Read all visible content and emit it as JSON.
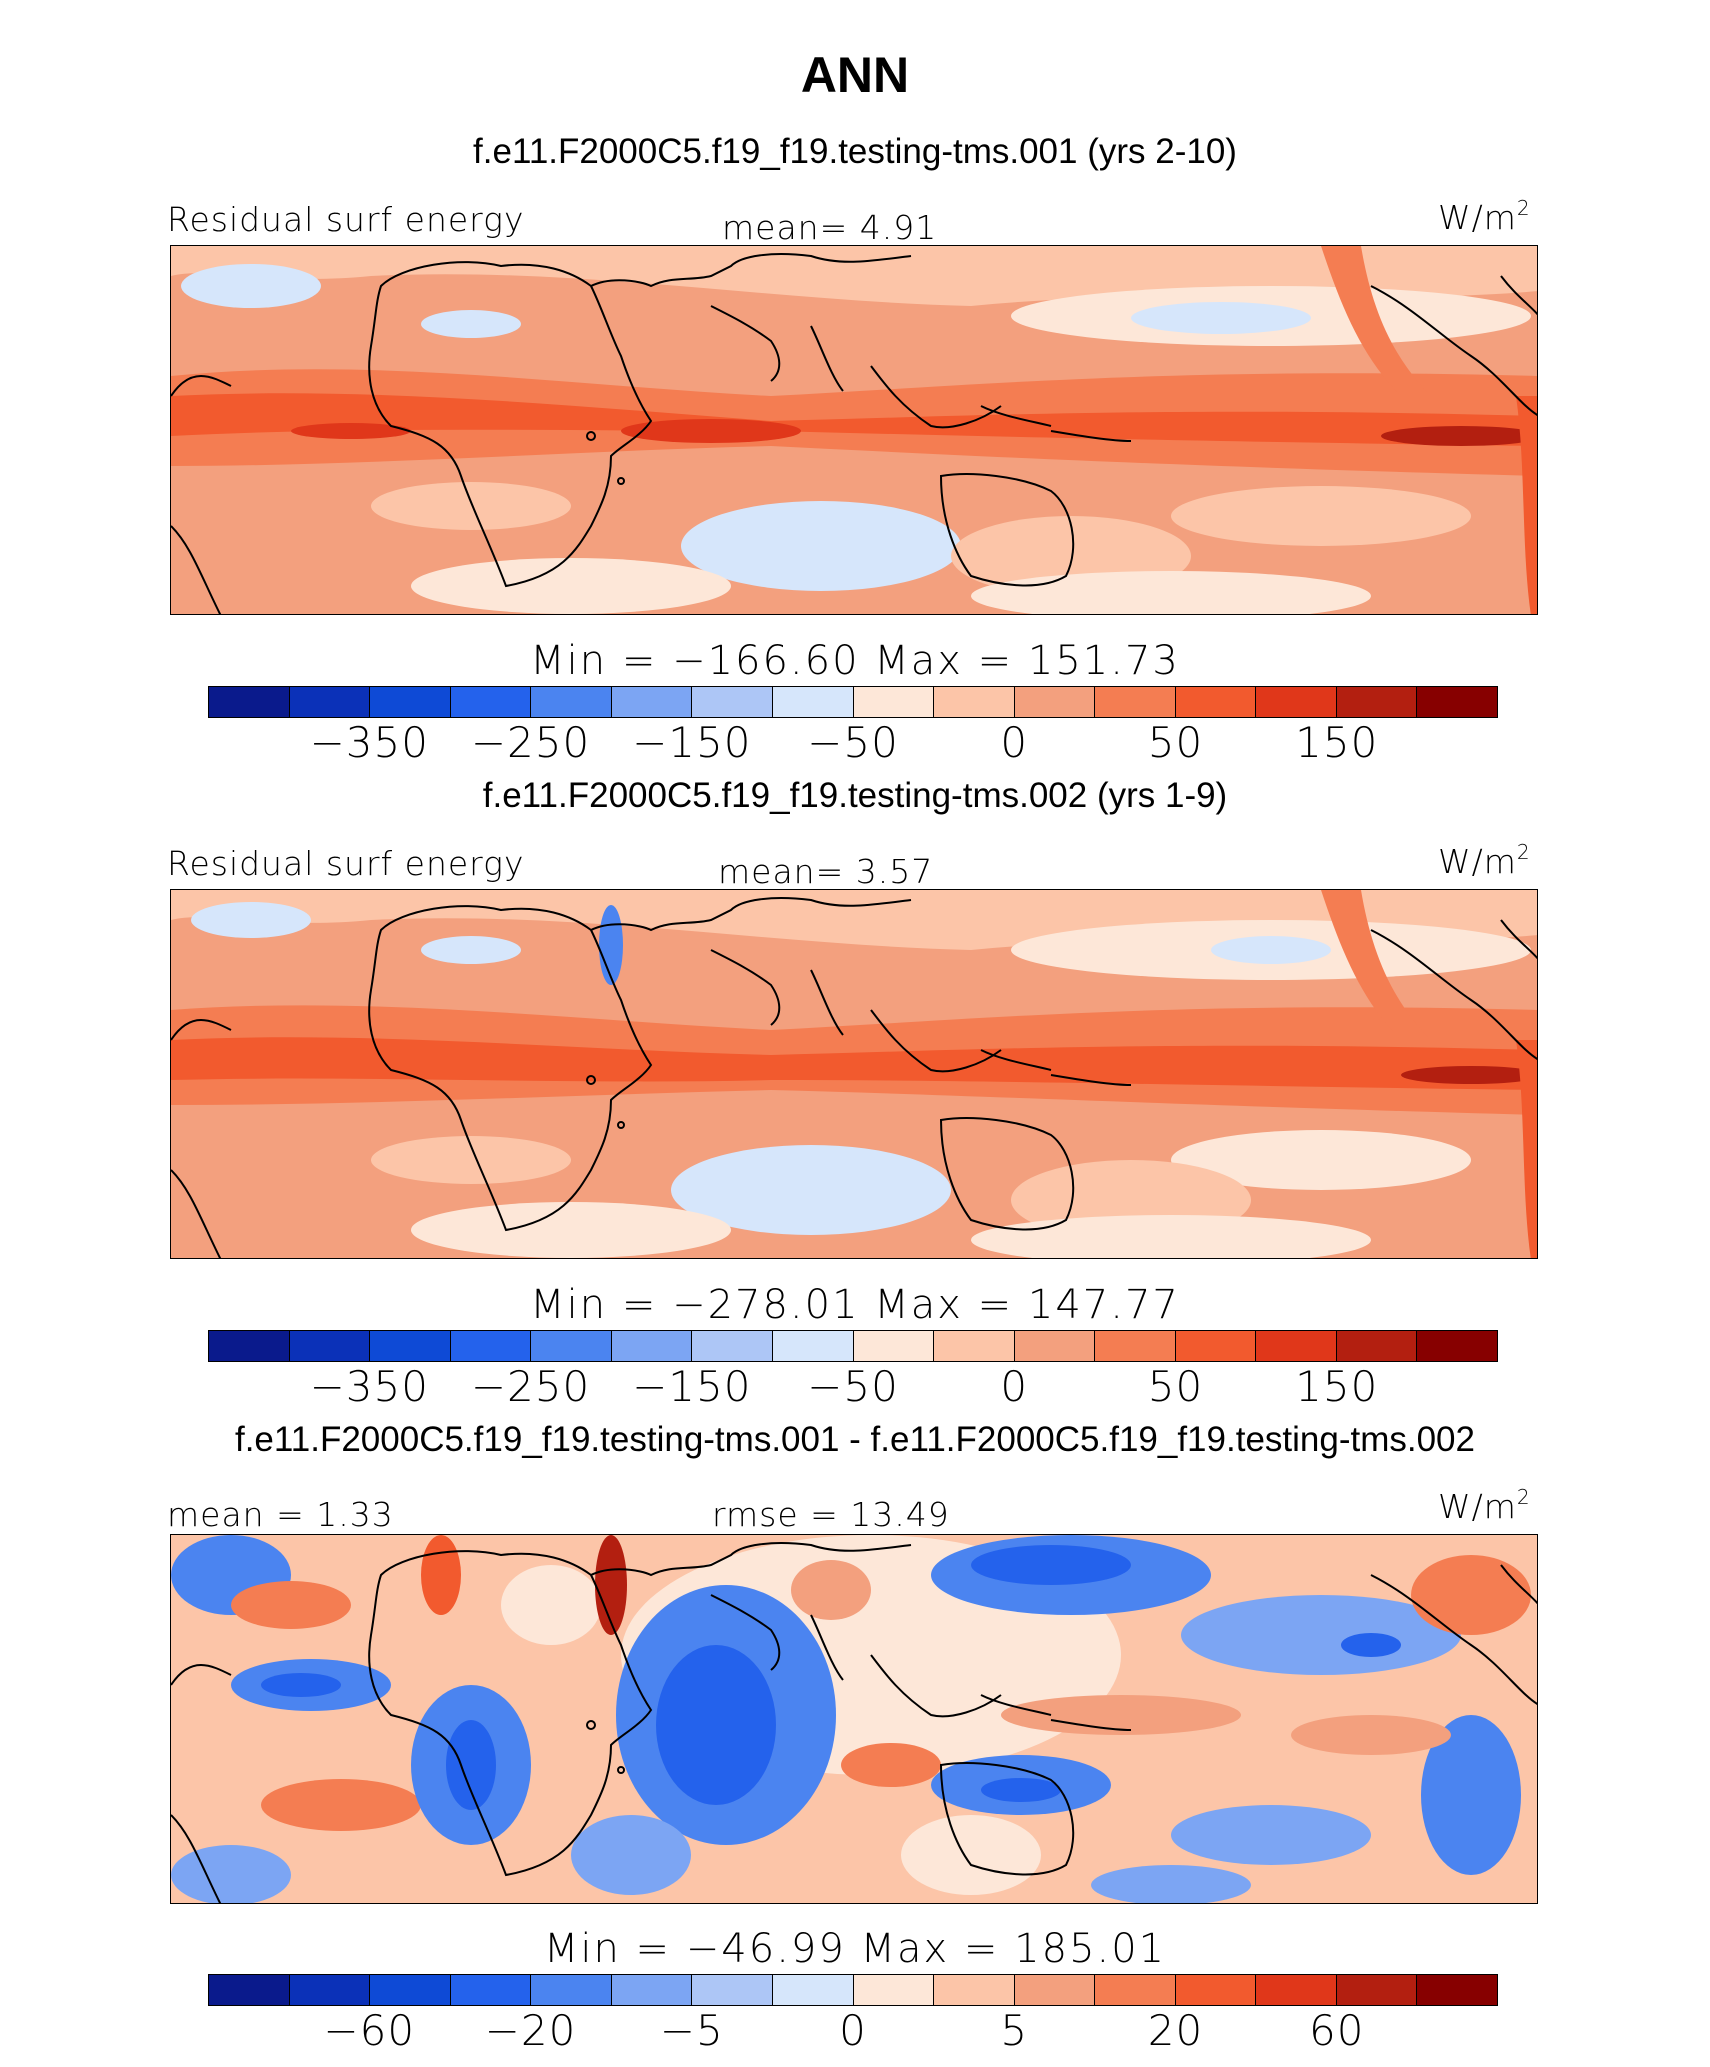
{
  "title": "ANN",
  "palette": [
    "#0a1a8c",
    "#0b31b8",
    "#0e4ad6",
    "#2462ec",
    "#4b84f0",
    "#7ca5f3",
    "#adc6f6",
    "#d6e6fb",
    "#fde7d8",
    "#fcc5a8",
    "#f3a07e",
    "#f47d52",
    "#f25a2e",
    "#e0371a",
    "#b31f10",
    "#870000"
  ],
  "panels": [
    {
      "case_title": "f.e11.F2000C5.f19_f19.testing-tms.001 (yrs 2-10)",
      "left_label": "Residual surf energy",
      "center_label": "mean=   4.91",
      "units": "W/m",
      "units_sup": "2",
      "minmax": "Min = −166.60 Max = 151.73",
      "cbar_ticks": [
        "−350",
        "−250",
        "−150",
        "−50",
        "0",
        "50",
        "150"
      ]
    },
    {
      "case_title": "f.e11.F2000C5.f19_f19.testing-tms.002 (yrs 1-9)",
      "left_label": "Residual surf energy",
      "center_label": "mean=   3.57",
      "units": "W/m",
      "units_sup": "2",
      "minmax": "Min = −278.01 Max = 147.77",
      "cbar_ticks": [
        "−350",
        "−250",
        "−150",
        "−50",
        "0",
        "50",
        "150"
      ]
    },
    {
      "case_title": "f.e11.F2000C5.f19_f19.testing-tms.001 - f.e11.F2000C5.f19_f19.testing-tms.002",
      "left_label": "mean =   1.33",
      "center_label": "rmse =  13.49",
      "units": "W/m",
      "units_sup": "2",
      "minmax": "Min = −46.99 Max = 185.01",
      "cbar_ticks": [
        "−60",
        "−20",
        "−5",
        "0",
        "5",
        "20",
        "60"
      ]
    }
  ]
}
